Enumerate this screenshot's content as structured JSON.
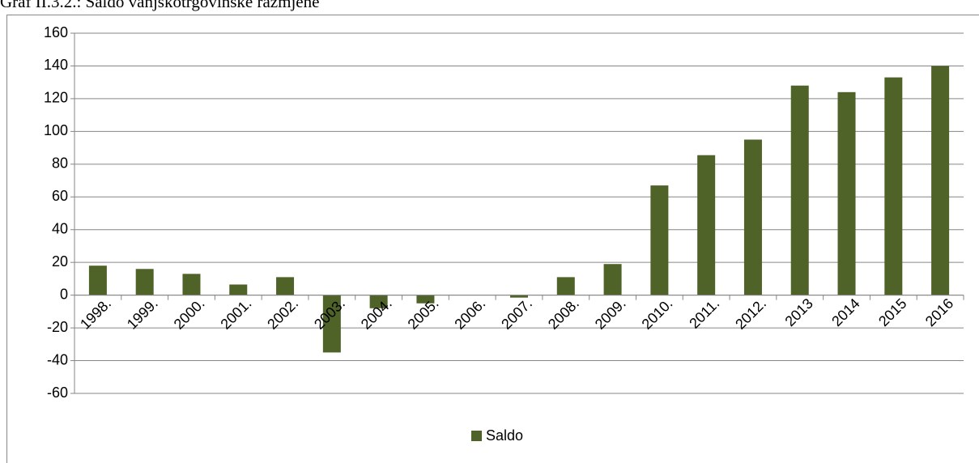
{
  "chart_data": {
    "type": "bar",
    "title": "Graf II.3.2.: Saldo vanjskotrgovinske razmjene",
    "categories": [
      "1998.",
      "1999.",
      "2000.",
      "2001.",
      "2002.",
      "2003.",
      "2004.",
      "2005.",
      "2006.",
      "2007.",
      "2008.",
      "2009.",
      "2010.",
      "2011.",
      "2012.",
      "2013",
      "2014",
      "2015",
      "2016"
    ],
    "series": [
      {
        "name": "Saldo",
        "color": "#4f6228",
        "values": [
          18,
          16,
          13,
          6.5,
          11,
          -35,
          -8,
          -5,
          0,
          -1.5,
          11,
          19,
          67,
          85.5,
          95,
          128,
          124,
          133,
          140
        ]
      }
    ],
    "ylim": [
      -60,
      160
    ],
    "yticks": [
      -60,
      -40,
      -20,
      0,
      20,
      40,
      60,
      80,
      100,
      120,
      140,
      160
    ],
    "grid": true,
    "legend": "bottom"
  }
}
